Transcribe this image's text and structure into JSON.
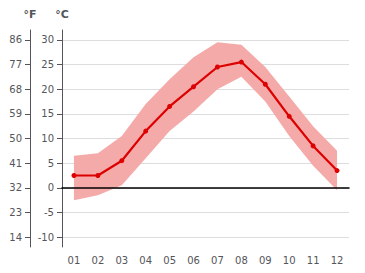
{
  "chart_data": {
    "type": "line",
    "categories": [
      "01",
      "02",
      "03",
      "04",
      "05",
      "06",
      "07",
      "08",
      "09",
      "10",
      "11",
      "12"
    ],
    "series": [
      {
        "type": "band",
        "color": "#f5aaaa",
        "low": [
          -2.5,
          -1.5,
          0.5,
          6.0,
          11.5,
          15.5,
          20.0,
          22.5,
          17.5,
          10.5,
          4.5,
          -0.5
        ],
        "high": [
          6.5,
          7.0,
          10.5,
          17.0,
          22.0,
          26.5,
          29.5,
          29.0,
          24.5,
          18.5,
          12.5,
          7.5
        ]
      },
      {
        "type": "line",
        "color": "#dd0000",
        "marker": "circle",
        "values": [
          2.5,
          2.5,
          5.5,
          11.5,
          16.5,
          20.5,
          24.5,
          25.5,
          21.0,
          14.5,
          8.5,
          3.5
        ]
      }
    ],
    "ylabel": "°C",
    "ylim": [
      -12,
      32
    ],
    "yticks": [
      -10,
      -5,
      0,
      5,
      10,
      15,
      20,
      25,
      30
    ],
    "y2label": "°F",
    "y2lim": [
      10.4,
      89.6
    ],
    "y2ticks": [
      14,
      23,
      32,
      41,
      50,
      59,
      68,
      77,
      86
    ],
    "grid": true
  }
}
